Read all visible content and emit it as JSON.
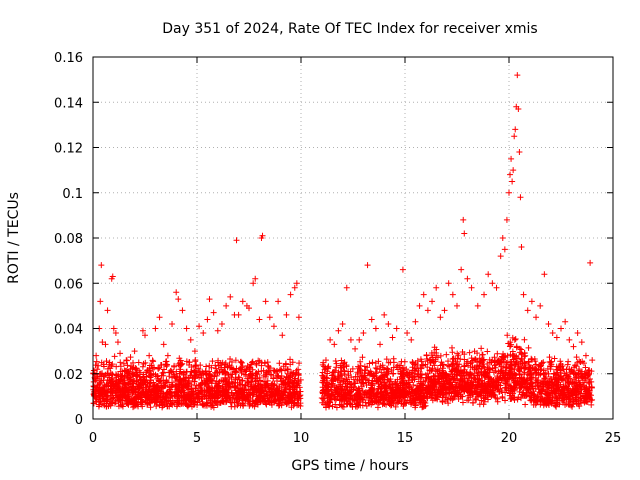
{
  "chart_data": {
    "type": "scatter",
    "title": "Day 351 of 2024, Rate Of TEC Index for receiver xmis",
    "xlabel": "GPS time / hours",
    "ylabel": "ROTI / TECUs",
    "xlim": [
      0,
      25
    ],
    "ylim": [
      0,
      0.16
    ],
    "x_ticks": [
      0,
      5,
      10,
      15,
      20,
      25
    ],
    "x_tick_labels": [
      "0",
      "5",
      "10",
      "15",
      "20",
      "25"
    ],
    "y_ticks": [
      0,
      0.02,
      0.04,
      0.06,
      0.08,
      0.1,
      0.12,
      0.14,
      0.16
    ],
    "y_tick_labels": [
      "0",
      "0.02",
      "0.04",
      "0.06",
      "0.08",
      "0.1",
      "0.12",
      "0.14",
      "0.16"
    ],
    "grid": true,
    "marker": "+",
    "color": "#ff0000",
    "data_gap_hours": [
      10.0,
      11.0
    ],
    "series": [
      {
        "name": "ROTI",
        "points": [
          [
            0.05,
            0.012
          ],
          [
            0.1,
            0.018
          ],
          [
            0.15,
            0.028
          ],
          [
            0.2,
            0.022
          ],
          [
            0.25,
            0.015
          ],
          [
            0.3,
            0.04
          ],
          [
            0.35,
            0.052
          ],
          [
            0.4,
            0.068
          ],
          [
            0.45,
            0.034
          ],
          [
            0.5,
            0.019
          ],
          [
            0.6,
            0.033
          ],
          [
            0.7,
            0.048
          ],
          [
            0.8,
            0.025
          ],
          [
            0.9,
            0.062
          ],
          [
            0.95,
            0.063
          ],
          [
            1.0,
            0.04
          ],
          [
            1.1,
            0.038
          ],
          [
            1.2,
            0.034
          ],
          [
            1.3,
            0.029
          ],
          [
            1.4,
            0.021
          ],
          [
            1.5,
            0.018
          ],
          [
            1.6,
            0.026
          ],
          [
            1.8,
            0.022
          ],
          [
            2.0,
            0.03
          ],
          [
            2.2,
            0.025
          ],
          [
            2.4,
            0.039
          ],
          [
            2.5,
            0.037
          ],
          [
            2.7,
            0.028
          ],
          [
            2.9,
            0.02
          ],
          [
            3.0,
            0.04
          ],
          [
            3.2,
            0.045
          ],
          [
            3.4,
            0.033
          ],
          [
            3.6,
            0.028
          ],
          [
            3.8,
            0.042
          ],
          [
            4.0,
            0.056
          ],
          [
            4.1,
            0.053
          ],
          [
            4.3,
            0.048
          ],
          [
            4.5,
            0.04
          ],
          [
            4.7,
            0.035
          ],
          [
            4.9,
            0.03
          ],
          [
            5.1,
            0.041
          ],
          [
            5.3,
            0.038
          ],
          [
            5.5,
            0.044
          ],
          [
            5.6,
            0.053
          ],
          [
            5.8,
            0.047
          ],
          [
            6.0,
            0.039
          ],
          [
            6.2,
            0.042
          ],
          [
            6.4,
            0.05
          ],
          [
            6.6,
            0.054
          ],
          [
            6.8,
            0.046
          ],
          [
            6.9,
            0.079
          ],
          [
            7.0,
            0.046
          ],
          [
            7.2,
            0.052
          ],
          [
            7.4,
            0.05
          ],
          [
            7.5,
            0.049
          ],
          [
            7.7,
            0.06
          ],
          [
            7.8,
            0.062
          ],
          [
            8.0,
            0.044
          ],
          [
            8.1,
            0.08
          ],
          [
            8.15,
            0.081
          ],
          [
            8.3,
            0.052
          ],
          [
            8.5,
            0.045
          ],
          [
            8.7,
            0.041
          ],
          [
            8.9,
            0.052
          ],
          [
            9.1,
            0.037
          ],
          [
            9.3,
            0.046
          ],
          [
            9.5,
            0.055
          ],
          [
            9.7,
            0.058
          ],
          [
            9.8,
            0.06
          ],
          [
            9.9,
            0.045
          ],
          [
            11.2,
            0.026
          ],
          [
            11.4,
            0.035
          ],
          [
            11.6,
            0.033
          ],
          [
            11.8,
            0.039
          ],
          [
            12.0,
            0.042
          ],
          [
            12.2,
            0.058
          ],
          [
            12.4,
            0.035
          ],
          [
            12.6,
            0.031
          ],
          [
            12.8,
            0.035
          ],
          [
            13.0,
            0.038
          ],
          [
            13.2,
            0.068
          ],
          [
            13.4,
            0.044
          ],
          [
            13.6,
            0.04
          ],
          [
            13.8,
            0.033
          ],
          [
            14.0,
            0.046
          ],
          [
            14.2,
            0.042
          ],
          [
            14.4,
            0.036
          ],
          [
            14.6,
            0.04
          ],
          [
            14.9,
            0.066
          ],
          [
            15.1,
            0.038
          ],
          [
            15.3,
            0.035
          ],
          [
            15.5,
            0.043
          ],
          [
            15.7,
            0.05
          ],
          [
            15.9,
            0.055
          ],
          [
            16.1,
            0.048
          ],
          [
            16.3,
            0.052
          ],
          [
            16.5,
            0.058
          ],
          [
            16.7,
            0.045
          ],
          [
            16.9,
            0.048
          ],
          [
            17.1,
            0.06
          ],
          [
            17.3,
            0.055
          ],
          [
            17.5,
            0.05
          ],
          [
            17.7,
            0.066
          ],
          [
            17.8,
            0.088
          ],
          [
            17.85,
            0.082
          ],
          [
            18.0,
            0.062
          ],
          [
            18.2,
            0.058
          ],
          [
            18.5,
            0.05
          ],
          [
            18.8,
            0.055
          ],
          [
            19.0,
            0.064
          ],
          [
            19.2,
            0.06
          ],
          [
            19.4,
            0.058
          ],
          [
            19.6,
            0.072
          ],
          [
            19.7,
            0.08
          ],
          [
            19.8,
            0.075
          ],
          [
            19.9,
            0.088
          ],
          [
            20.0,
            0.1
          ],
          [
            20.05,
            0.108
          ],
          [
            20.1,
            0.115
          ],
          [
            20.15,
            0.105
          ],
          [
            20.2,
            0.11
          ],
          [
            20.25,
            0.125
          ],
          [
            20.3,
            0.128
          ],
          [
            20.35,
            0.138
          ],
          [
            20.4,
            0.152
          ],
          [
            20.45,
            0.137
          ],
          [
            20.5,
            0.118
          ],
          [
            20.55,
            0.098
          ],
          [
            20.6,
            0.076
          ],
          [
            20.7,
            0.055
          ],
          [
            20.9,
            0.048
          ],
          [
            21.1,
            0.052
          ],
          [
            21.3,
            0.045
          ],
          [
            21.5,
            0.05
          ],
          [
            21.7,
            0.064
          ],
          [
            21.9,
            0.042
          ],
          [
            22.1,
            0.038
          ],
          [
            22.3,
            0.036
          ],
          [
            22.5,
            0.04
          ],
          [
            22.7,
            0.043
          ],
          [
            22.9,
            0.035
          ],
          [
            23.1,
            0.032
          ],
          [
            23.3,
            0.038
          ],
          [
            23.5,
            0.034
          ],
          [
            23.7,
            0.028
          ],
          [
            23.9,
            0.069
          ],
          [
            24.0,
            0.026
          ]
        ]
      }
    ],
    "dense_band_description": "",
    "band": {
      "segments": [
        [
          0.0,
          10.0
        ],
        [
          11.0,
          24.0
        ]
      ],
      "floor": 0.005,
      "base": 0.012,
      "spread": 0.016,
      "per_hour": 170
    }
  }
}
